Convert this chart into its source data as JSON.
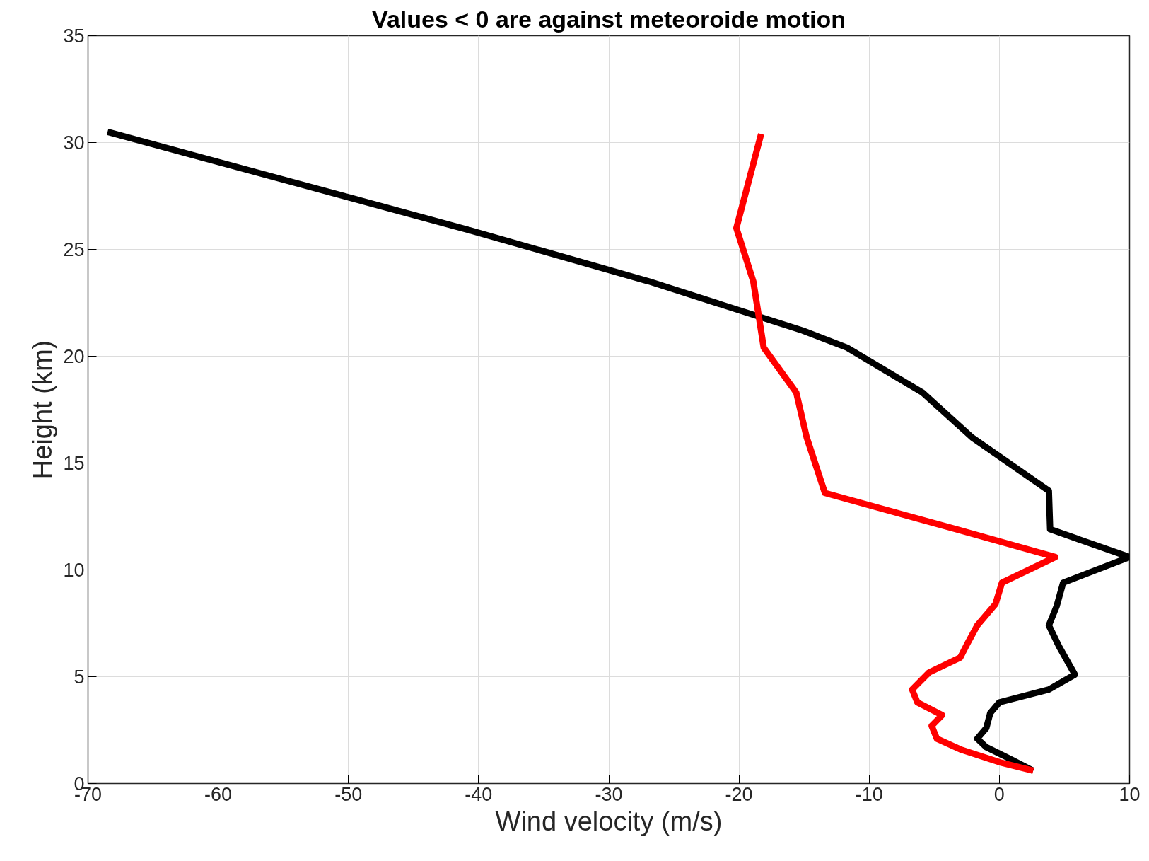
{
  "chart_data": {
    "type": "line",
    "title": "Values < 0 are against meteoroide motion",
    "xlabel": "Wind velocity (m/s)",
    "ylabel": "Height (km)",
    "xlim": [
      -70,
      10
    ],
    "xticks": [
      -70,
      -60,
      -50,
      -40,
      -30,
      -20,
      -10,
      0,
      10
    ],
    "ylim": [
      0,
      35
    ],
    "yticks": [
      0,
      5,
      10,
      15,
      20,
      25,
      30,
      35
    ],
    "grid": true,
    "line_style": "solid",
    "series": [
      {
        "color": "#000000",
        "x": [
          -68.5,
          -40.7,
          -26.9,
          -15.1,
          -11.7,
          -5.9,
          -2.1,
          3.8,
          3.9,
          10,
          4.9,
          4.4,
          3.8,
          4.6,
          5.8,
          3.8,
          0,
          -0.7,
          -1,
          -1.7,
          -1,
          1,
          2.6
        ],
        "values": [
          30.5,
          25.9,
          23.5,
          21.2,
          20.4,
          18.3,
          16.2,
          13.7,
          11.9,
          10.6,
          9.4,
          8.3,
          7.4,
          6.4,
          5.1,
          4.4,
          3.8,
          3.3,
          2.6,
          2.1,
          1.7,
          1.1,
          0.6
        ]
      },
      {
        "color": "#ff0000",
        "x": [
          -18.3,
          -20.2,
          -18.9,
          -18.1,
          -15.6,
          -14.8,
          -13.4,
          -3.3,
          4.3,
          0.2,
          -0.3,
          -1.7,
          -2.5,
          -3.0,
          -5.4,
          -6.7,
          -6.3,
          -4.4,
          -5.2,
          -4.8,
          -3.0,
          0,
          2.6
        ],
        "values": [
          30.4,
          26.0,
          23.5,
          20.4,
          18.3,
          16.2,
          13.6,
          11.9,
          10.6,
          9.4,
          8.4,
          7.4,
          6.5,
          5.9,
          5.2,
          4.4,
          3.8,
          3.2,
          2.7,
          2.1,
          1.6,
          1.0,
          0.6
        ]
      }
    ]
  }
}
